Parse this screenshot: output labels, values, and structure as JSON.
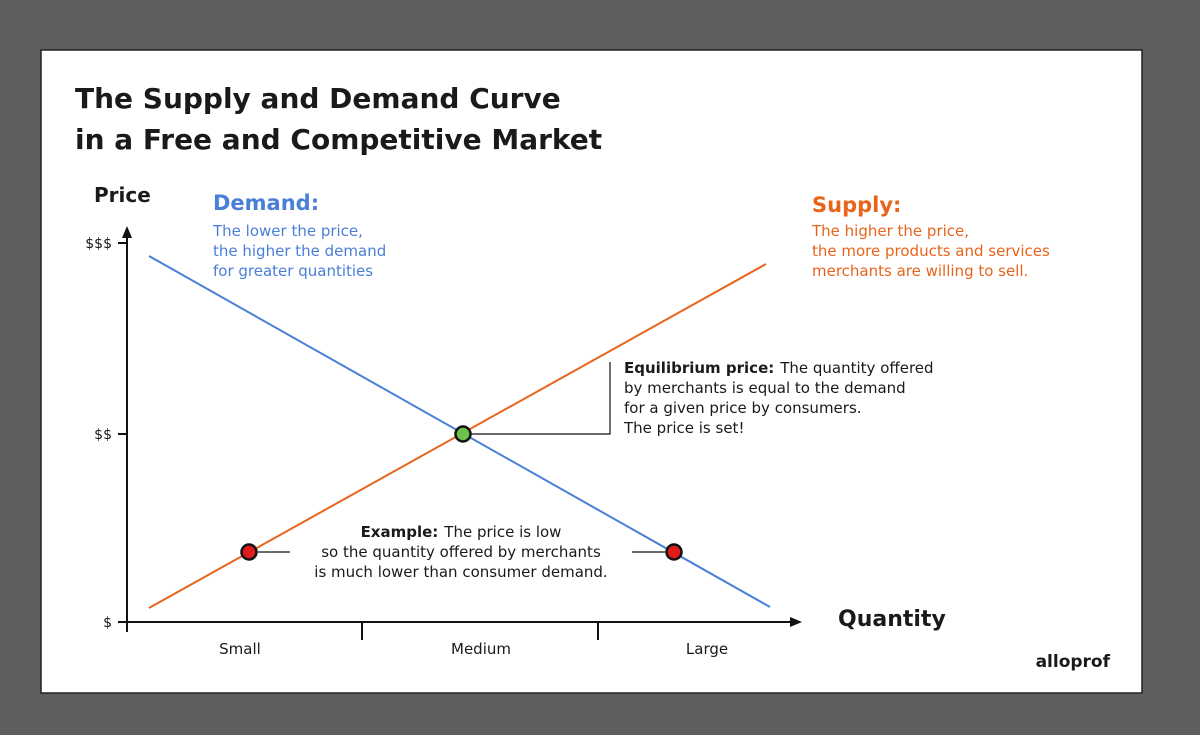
{
  "title": [
    "The Supply and Demand Curve",
    "in a Free and Competitive Market"
  ],
  "axes": {
    "y_label": "Price",
    "y_ticks": [
      "$$$",
      "$$",
      "$"
    ],
    "x_label": "Quantity",
    "x_ticks": [
      "Small",
      "Medium",
      "Large"
    ]
  },
  "demand": {
    "heading": "Demand:",
    "lines": [
      "The lower the price,",
      "the higher the demand",
      "for greater quantities"
    ]
  },
  "supply": {
    "heading": "Supply:",
    "lines": [
      "The higher the price,",
      "the more products and services",
      "merchants are willing to sell."
    ]
  },
  "equilibrium": {
    "heading": "Equilibrium price:",
    "lines": [
      "The quantity offered",
      "by merchants is equal to the demand",
      "for a given price by consumers.",
      "The price is set!"
    ]
  },
  "example": {
    "heading": "Example:",
    "lines": [
      "The price is low",
      "so the quantity offered by merchants",
      "is much lower than consumer demand."
    ]
  },
  "logo": "alloprof"
}
